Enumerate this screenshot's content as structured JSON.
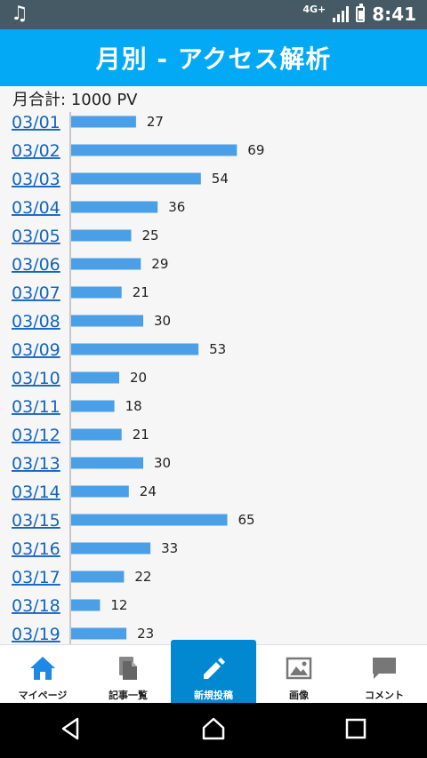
{
  "status": {
    "network": "4G+",
    "time": "8:41"
  },
  "header": {
    "title": "月別 - アクセス解析"
  },
  "summary": {
    "total_label": "月合計: 1000 PV"
  },
  "chart_data": {
    "type": "bar",
    "orientation": "horizontal",
    "categories": [
      "03/01",
      "03/02",
      "03/03",
      "03/04",
      "03/05",
      "03/06",
      "03/07",
      "03/08",
      "03/09",
      "03/10",
      "03/11",
      "03/12",
      "03/13",
      "03/14",
      "03/15",
      "03/16",
      "03/17",
      "03/18",
      "03/19"
    ],
    "values": [
      27,
      69,
      54,
      36,
      25,
      29,
      21,
      30,
      53,
      20,
      18,
      21,
      30,
      24,
      65,
      33,
      22,
      12,
      23
    ],
    "bar_color": "#4a9fe6",
    "link_color": "#1565c0"
  },
  "tabs": [
    {
      "label": "マイページ",
      "icon": "home-icon",
      "active": false
    },
    {
      "label": "記事一覧",
      "icon": "documents-icon",
      "active": false
    },
    {
      "label": "新規投稿",
      "icon": "pencil-icon",
      "active": true
    },
    {
      "label": "画像",
      "icon": "image-icon",
      "active": false
    },
    {
      "label": "コメント",
      "icon": "comment-icon",
      "active": false
    }
  ]
}
